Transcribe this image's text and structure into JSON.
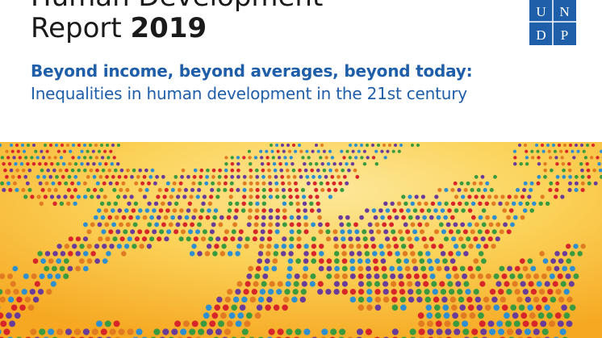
{
  "cover": {
    "title_line1": "Human Development",
    "title_line2_prefix": "Report ",
    "title_year": "2019",
    "subtitle_bold": "Beyond income, beyond averages, beyond today:",
    "subtitle": "Inequalities in human development in the 21st century"
  },
  "logo": {
    "letters": [
      "U",
      "N",
      "D",
      "P"
    ],
    "color": "#1f5ea8"
  },
  "artwork": {
    "dot_colors": [
      "#d7262a",
      "#3a9a3f",
      "#2e8fd0",
      "#6a3c9a",
      "#e07b22"
    ],
    "background_colors": [
      "#f6a822",
      "#fbd35a",
      "#fde79a"
    ]
  }
}
